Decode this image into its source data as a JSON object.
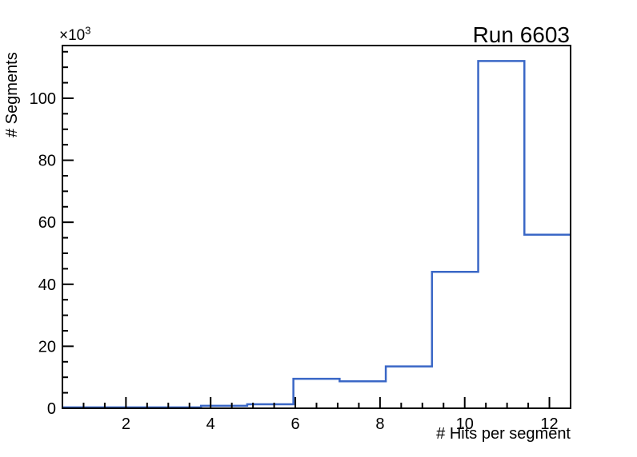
{
  "chart_data": {
    "type": "histogram-step",
    "title": "Run 6603",
    "xlabel": "# Hits per segment",
    "ylabel": "# Segments",
    "y_multiplier_base": "×10",
    "y_multiplier_exp": "3",
    "xlim": [
      0.5,
      12.5
    ],
    "ylim": [
      0,
      117000
    ],
    "bin_edges": [
      0.5,
      1.5909,
      2.6818,
      3.7727,
      4.8636,
      5.9545,
      7.0455,
      8.1364,
      9.2273,
      10.3182,
      11.4091,
      12.5
    ],
    "bin_values": [
      300,
      300,
      300,
      800,
      1300,
      9500,
      8700,
      13500,
      44000,
      112000,
      56000
    ],
    "x_tick_values": [
      2,
      4,
      6,
      8,
      10,
      12
    ],
    "x_tick_labels": [
      "2",
      "4",
      "6",
      "8",
      "10",
      "12"
    ],
    "x_minor_step": 0.5,
    "y_tick_values": [
      0,
      20000,
      40000,
      60000,
      80000,
      100000
    ],
    "y_tick_labels": [
      "0",
      "20",
      "40",
      "60",
      "80",
      "100"
    ],
    "y_minor_step": 5000,
    "grid": false,
    "legend": null,
    "line_color": "#3a67c6",
    "frame_color": "#000000",
    "background_color": "#ffffff"
  }
}
